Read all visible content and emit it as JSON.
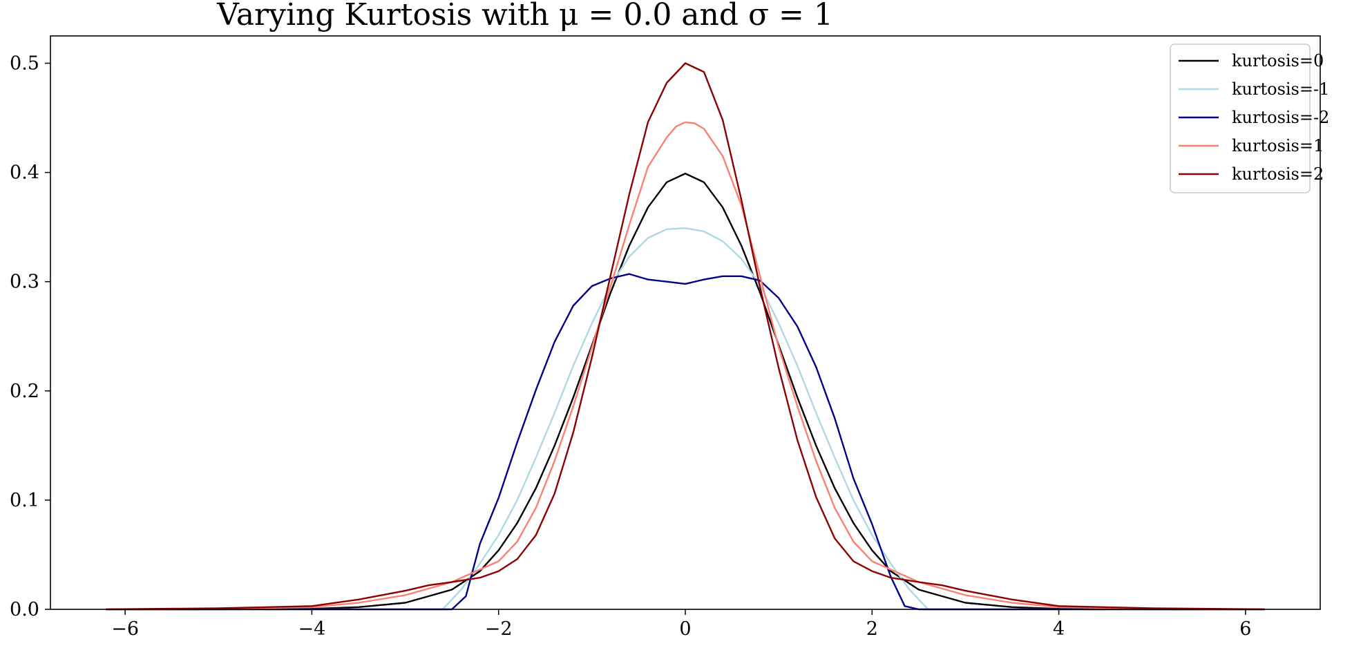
{
  "chart_data": {
    "type": "line",
    "title": "Varying Kurtosis with μ = 0.0 and σ = 1",
    "xlabel": "",
    "ylabel": "",
    "xlim": [
      -6.8,
      6.8
    ],
    "ylim": [
      0.0,
      0.525
    ],
    "xticks": [
      -6,
      -4,
      -2,
      0,
      2,
      4,
      6
    ],
    "xtick_labels": [
      "−6",
      "−4",
      "−2",
      "0",
      "2",
      "4",
      "6"
    ],
    "yticks": [
      0.0,
      0.1,
      0.2,
      0.3,
      0.4,
      0.5
    ],
    "ytick_labels": [
      "0.0",
      "0.1",
      "0.2",
      "0.3",
      "0.4",
      "0.5"
    ],
    "grid": false,
    "legend_position": "top-right",
    "series": [
      {
        "name": "kurtosis=0",
        "color": "#000000",
        "x": [
          -6.2,
          -5.0,
          -4.0,
          -3.5,
          -3.0,
          -2.5,
          -2.2,
          -2.0,
          -1.8,
          -1.6,
          -1.4,
          -1.2,
          -1.0,
          -0.8,
          -0.6,
          -0.4,
          -0.2,
          0.0,
          0.2,
          0.4,
          0.6,
          0.8,
          1.0,
          1.2,
          1.4,
          1.6,
          1.8,
          2.0,
          2.2,
          2.5,
          3.0,
          3.5,
          4.0,
          5.0,
          6.2
        ],
        "y": [
          0.0,
          0.0,
          0.0005,
          0.002,
          0.006,
          0.018,
          0.035,
          0.054,
          0.079,
          0.111,
          0.15,
          0.194,
          0.242,
          0.29,
          0.333,
          0.368,
          0.391,
          0.399,
          0.391,
          0.368,
          0.333,
          0.29,
          0.242,
          0.194,
          0.15,
          0.111,
          0.079,
          0.054,
          0.035,
          0.018,
          0.006,
          0.002,
          0.0005,
          0.0,
          0.0
        ]
      },
      {
        "name": "kurtosis=-1",
        "color": "#add8e6",
        "x": [
          -6.2,
          -3.0,
          -2.6,
          -2.4,
          -2.2,
          -2.0,
          -1.8,
          -1.6,
          -1.4,
          -1.2,
          -1.0,
          -0.8,
          -0.6,
          -0.4,
          -0.2,
          0.0,
          0.2,
          0.4,
          0.6,
          0.8,
          1.0,
          1.2,
          1.4,
          1.6,
          1.8,
          2.0,
          2.2,
          2.4,
          2.6,
          3.0,
          6.2
        ],
        "y": [
          0.0,
          0.0,
          0.0,
          0.018,
          0.042,
          0.068,
          0.1,
          0.139,
          0.18,
          0.223,
          0.262,
          0.297,
          0.323,
          0.34,
          0.348,
          0.349,
          0.346,
          0.337,
          0.321,
          0.297,
          0.262,
          0.223,
          0.18,
          0.139,
          0.1,
          0.068,
          0.042,
          0.018,
          0.0,
          0.0,
          0.0
        ]
      },
      {
        "name": "kurtosis=-2",
        "color": "#00008b",
        "x": [
          -6.2,
          -2.5,
          -2.35,
          -2.2,
          -2.0,
          -1.8,
          -1.6,
          -1.4,
          -1.2,
          -1.0,
          -0.8,
          -0.6,
          -0.4,
          -0.2,
          0.0,
          0.2,
          0.4,
          0.6,
          0.8,
          1.0,
          1.2,
          1.4,
          1.6,
          1.8,
          2.0,
          2.2,
          2.35,
          2.5,
          6.2
        ],
        "y": [
          0.0,
          0.0,
          0.012,
          0.06,
          0.102,
          0.153,
          0.201,
          0.245,
          0.278,
          0.296,
          0.303,
          0.307,
          0.302,
          0.3,
          0.298,
          0.302,
          0.305,
          0.305,
          0.301,
          0.285,
          0.259,
          0.222,
          0.175,
          0.12,
          0.078,
          0.03,
          0.003,
          0.0,
          0.0
        ]
      },
      {
        "name": "kurtosis=1",
        "color": "#fa8072",
        "x": [
          -6.2,
          -5.0,
          -4.0,
          -3.5,
          -3.0,
          -2.5,
          -2.0,
          -1.8,
          -1.6,
          -1.4,
          -1.2,
          -1.0,
          -0.8,
          -0.6,
          -0.4,
          -0.2,
          -0.1,
          0.0,
          0.1,
          0.2,
          0.4,
          0.6,
          0.8,
          1.0,
          1.2,
          1.4,
          1.6,
          1.8,
          2.0,
          2.5,
          3.0,
          3.5,
          4.0,
          5.0,
          6.2
        ],
        "y": [
          0.0,
          0.0005,
          0.002,
          0.006,
          0.013,
          0.025,
          0.044,
          0.062,
          0.093,
          0.136,
          0.186,
          0.24,
          0.296,
          0.352,
          0.405,
          0.432,
          0.442,
          0.446,
          0.445,
          0.44,
          0.415,
          0.37,
          0.305,
          0.24,
          0.186,
          0.136,
          0.093,
          0.062,
          0.044,
          0.025,
          0.013,
          0.006,
          0.002,
          0.0005,
          0.0
        ]
      },
      {
        "name": "kurtosis=2",
        "color": "#8b0000",
        "x": [
          -6.2,
          -5.0,
          -4.0,
          -3.5,
          -3.0,
          -2.75,
          -2.5,
          -2.2,
          -2.0,
          -1.8,
          -1.6,
          -1.4,
          -1.2,
          -1.0,
          -0.8,
          -0.6,
          -0.4,
          -0.2,
          0.0,
          0.2,
          0.4,
          0.6,
          0.8,
          1.0,
          1.2,
          1.4,
          1.6,
          1.8,
          2.0,
          2.2,
          2.5,
          2.75,
          3.0,
          3.5,
          4.0,
          5.0,
          6.2
        ],
        "y": [
          0.0,
          0.001,
          0.003,
          0.009,
          0.017,
          0.022,
          0.025,
          0.029,
          0.035,
          0.046,
          0.068,
          0.106,
          0.162,
          0.231,
          0.306,
          0.38,
          0.446,
          0.482,
          0.5,
          0.492,
          0.448,
          0.375,
          0.295,
          0.221,
          0.155,
          0.103,
          0.065,
          0.044,
          0.035,
          0.029,
          0.025,
          0.022,
          0.017,
          0.009,
          0.003,
          0.001,
          0.0
        ]
      }
    ]
  }
}
